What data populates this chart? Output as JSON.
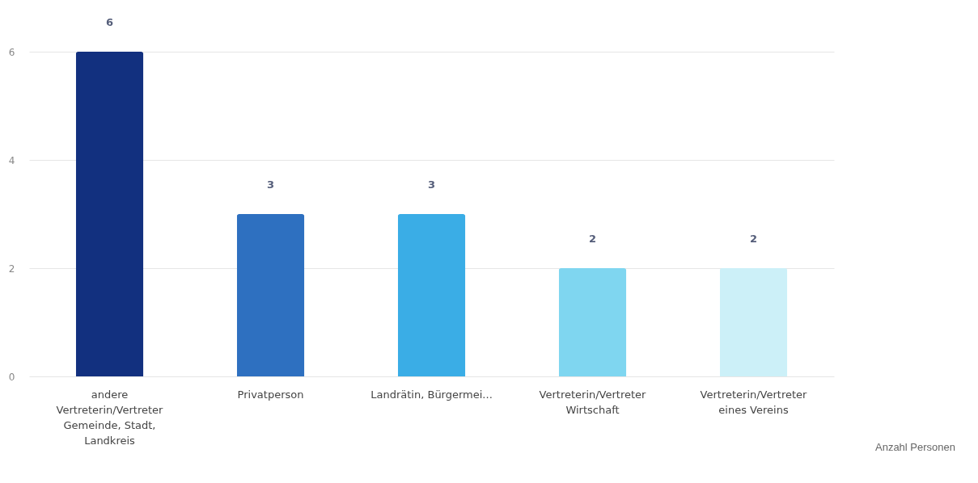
{
  "chart_data": {
    "type": "bar",
    "categories": [
      "andere\nVertreterin/Vertreter\nGemeinde, Stadt,\nLandkreis",
      "Privatperson",
      "Landrätin, Bürgermei...",
      "Vertreterin/Vertreter\nWirtschaft",
      "Vertreterin/Vertreter\neines Vereins"
    ],
    "values": [
      6,
      3,
      3,
      2,
      2
    ],
    "colors": [
      "#12307f",
      "#2e70c0",
      "#3aade6",
      "#7fd6f0",
      "#ccf0f8"
    ],
    "ylim": [
      0,
      6
    ],
    "yticks": [
      0,
      2,
      4,
      6
    ],
    "grid": "y",
    "data_labels": true,
    "annotations": [
      "Anzahl Personen"
    ]
  }
}
